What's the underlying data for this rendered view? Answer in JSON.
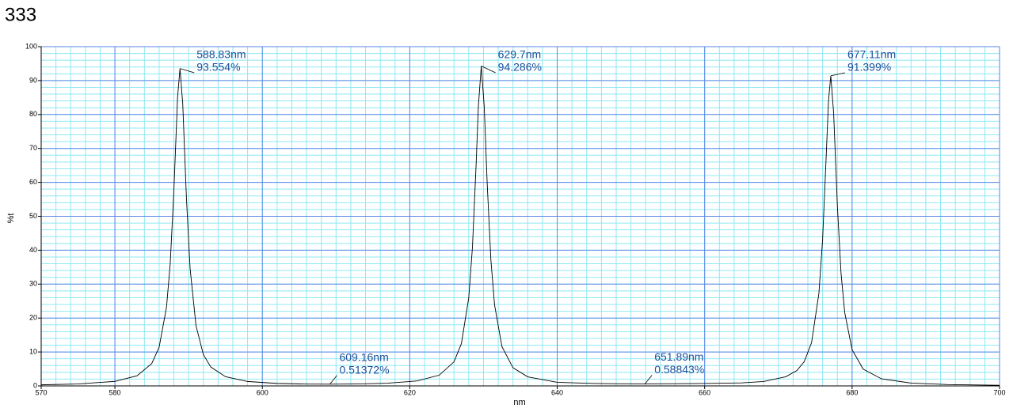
{
  "chart_data": {
    "type": "line",
    "title": "333",
    "xlabel": "nm",
    "ylabel": "%t",
    "x": [
      570,
      575,
      580,
      583,
      585,
      586,
      587,
      587.5,
      588,
      588.5,
      588.83,
      589.2,
      589.7,
      590.2,
      591,
      592,
      593,
      595,
      598,
      602,
      606,
      609.16,
      613,
      617,
      621,
      624,
      626,
      627,
      628,
      628.5,
      629,
      629.3,
      629.7,
      630.1,
      630.5,
      631,
      631.5,
      632.5,
      634,
      636,
      640,
      645,
      648,
      651.89,
      655,
      660,
      665,
      668,
      671,
      672.5,
      673.5,
      674.5,
      675.5,
      676,
      676.5,
      676.8,
      677.11,
      677.5,
      678,
      678.5,
      679,
      680,
      681.5,
      684,
      688,
      693,
      700
    ],
    "values": [
      0.32,
      0.57,
      1.34,
      2.99,
      6.6,
      11.4,
      23.2,
      35.9,
      57.6,
      85.1,
      93.554,
      83.2,
      55.5,
      34.6,
      17.75,
      9.25,
      5.58,
      2.72,
      1.31,
      0.73,
      0.53,
      0.51372,
      0.57,
      0.79,
      1.47,
      3.17,
      7.1,
      12.45,
      26.0,
      40.9,
      65.3,
      82.3,
      94.286,
      82.3,
      59.7,
      37.2,
      23.9,
      11.6,
      5.35,
      2.67,
      1.07,
      0.72,
      0.62,
      0.58843,
      0.62,
      0.72,
      0.9,
      1.3,
      2.7,
      4.51,
      7.13,
      12.73,
      27.3,
      43.2,
      68.4,
      84.1,
      91.399,
      80.3,
      53.2,
      33.2,
      21.6,
      10.66,
      4.95,
      2.07,
      0.84,
      0.4,
      0.19
    ],
    "color": "#000000",
    "xlim": [
      570,
      700
    ],
    "ylim": [
      0,
      100
    ],
    "xticks": [
      570,
      580,
      600,
      620,
      640,
      660,
      680,
      700
    ],
    "yticks": [
      0,
      10,
      20,
      30,
      40,
      50,
      60,
      70,
      80,
      90,
      100
    ],
    "xgrid": [
      580,
      600,
      620,
      640,
      660,
      680,
      700
    ],
    "xminor": [
      570,
      572,
      574,
      576,
      578,
      580,
      582,
      584,
      586,
      588,
      590,
      592,
      594,
      596,
      598,
      600,
      602,
      604,
      606,
      608,
      610,
      612,
      614,
      616,
      618,
      620,
      622,
      624,
      626,
      628,
      630,
      632,
      634,
      636,
      638,
      640,
      642,
      644,
      646,
      648,
      650,
      652,
      654,
      656,
      658,
      660,
      662,
      664,
      666,
      668,
      670,
      672,
      674,
      676,
      678,
      680,
      682,
      684,
      686,
      688,
      690,
      692,
      694,
      696,
      698,
      700
    ],
    "yminor": [
      0,
      2,
      4,
      6,
      8,
      10,
      12,
      14,
      16,
      18,
      20,
      22,
      24,
      26,
      28,
      30,
      32,
      34,
      36,
      38,
      40,
      42,
      44,
      46,
      48,
      50,
      52,
      54,
      56,
      58,
      60,
      62,
      64,
      66,
      68,
      70,
      72,
      74,
      76,
      78,
      80,
      82,
      84,
      86,
      88,
      90,
      92,
      94,
      96,
      98,
      100
    ],
    "grid_color": "#5b86e5",
    "minor_grid_color": "#8ee8f2",
    "annotations": [
      {
        "x": 588.83,
        "y": 93.554,
        "lines": [
          "588.83nm",
          "93.554%"
        ]
      },
      {
        "x": 629.7,
        "y": 94.286,
        "lines": [
          "629.7nm",
          "94.286%"
        ]
      },
      {
        "x": 677.11,
        "y": 91.399,
        "lines": [
          "677.11nm",
          "91.399%"
        ]
      },
      {
        "x": 609.16,
        "y": 0.51372,
        "lines": [
          "609.16nm",
          "0.51372%"
        ]
      },
      {
        "x": 651.89,
        "y": 0.58843,
        "lines": [
          "651.89nm",
          "0.58843%"
        ]
      }
    ]
  }
}
